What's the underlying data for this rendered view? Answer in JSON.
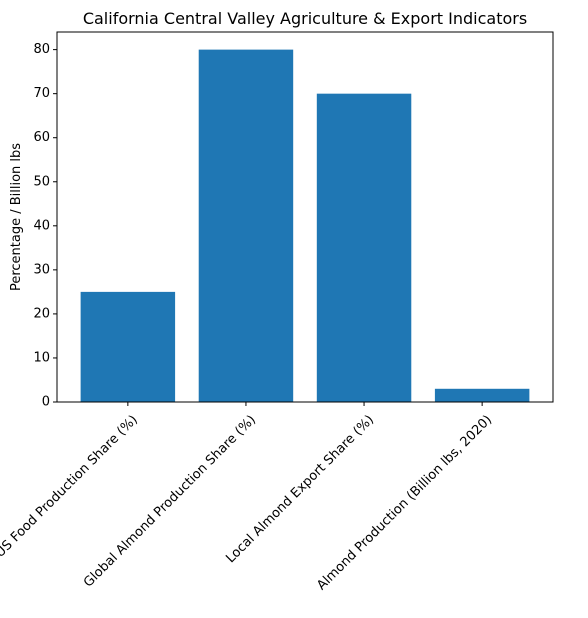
{
  "chart_data": {
    "type": "bar",
    "title": "California Central Valley Agriculture & Export Indicators",
    "xlabel": "",
    "ylabel": "Percentage / Billion lbs",
    "categories": [
      "US Food Production Share (%)",
      "Global Almond Production Share (%)",
      "Local Almond Export Share (%)",
      "Almond Production (Billion lbs, 2020)"
    ],
    "values": [
      25,
      80,
      70,
      3
    ],
    "ylim": [
      0,
      84
    ],
    "yticks": [
      0,
      10,
      20,
      30,
      40,
      50,
      60,
      70,
      80
    ],
    "grid": false,
    "bar_color": "#1f77b4"
  }
}
